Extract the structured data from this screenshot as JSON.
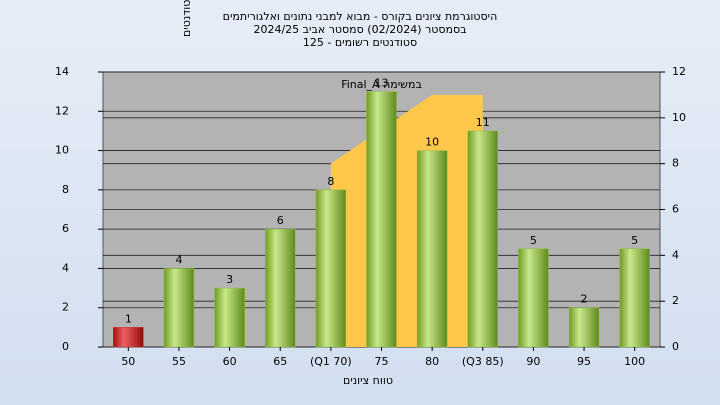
{
  "chart_data": {
    "type": "bar",
    "title_lines": [
      "היסטוגרמת ציונים בקורס - מבוא למבני נתונים ואלגוריתמים",
      "בסמסטר  (02/2024)  סמסטר אביב 2024/25",
      "סטודנטים רשומים - 125"
    ],
    "x_label": "טווח ציונים",
    "y_label": "מספר סטודנטים",
    "categories": [
      "50",
      "55",
      "60",
      "65",
      "(Q1 70)",
      "75",
      "80",
      "(Q3 85)",
      "90",
      "95",
      "100"
    ],
    "series": [
      {
        "name": "מספר סטודנטים",
        "type": "bar",
        "colors": [
          "#d42a2a",
          "#93c03f",
          "#93c03f",
          "#93c03f",
          "#93c03f",
          "#93c03f",
          "#93c03f",
          "#93c03f",
          "#93c03f",
          "#93c03f",
          "#93c03f"
        ],
        "values": [
          1,
          4,
          3,
          6,
          8,
          13,
          10,
          11,
          5,
          2,
          5
        ]
      },
      {
        "name": "Final_A במשימה",
        "type": "area",
        "axis": "y2",
        "color": "#ffc84a",
        "values": [
          null,
          null,
          null,
          null,
          8,
          9.5,
          11,
          11,
          null,
          null,
          null
        ]
      }
    ],
    "ylim": [
      0,
      14
    ],
    "yticks": [
      0,
      2,
      4,
      6,
      8,
      10,
      12,
      14
    ],
    "y2lim": [
      0,
      12
    ],
    "y2ticks": [
      0,
      2,
      4,
      6,
      8,
      10,
      12
    ],
    "grid": true
  }
}
